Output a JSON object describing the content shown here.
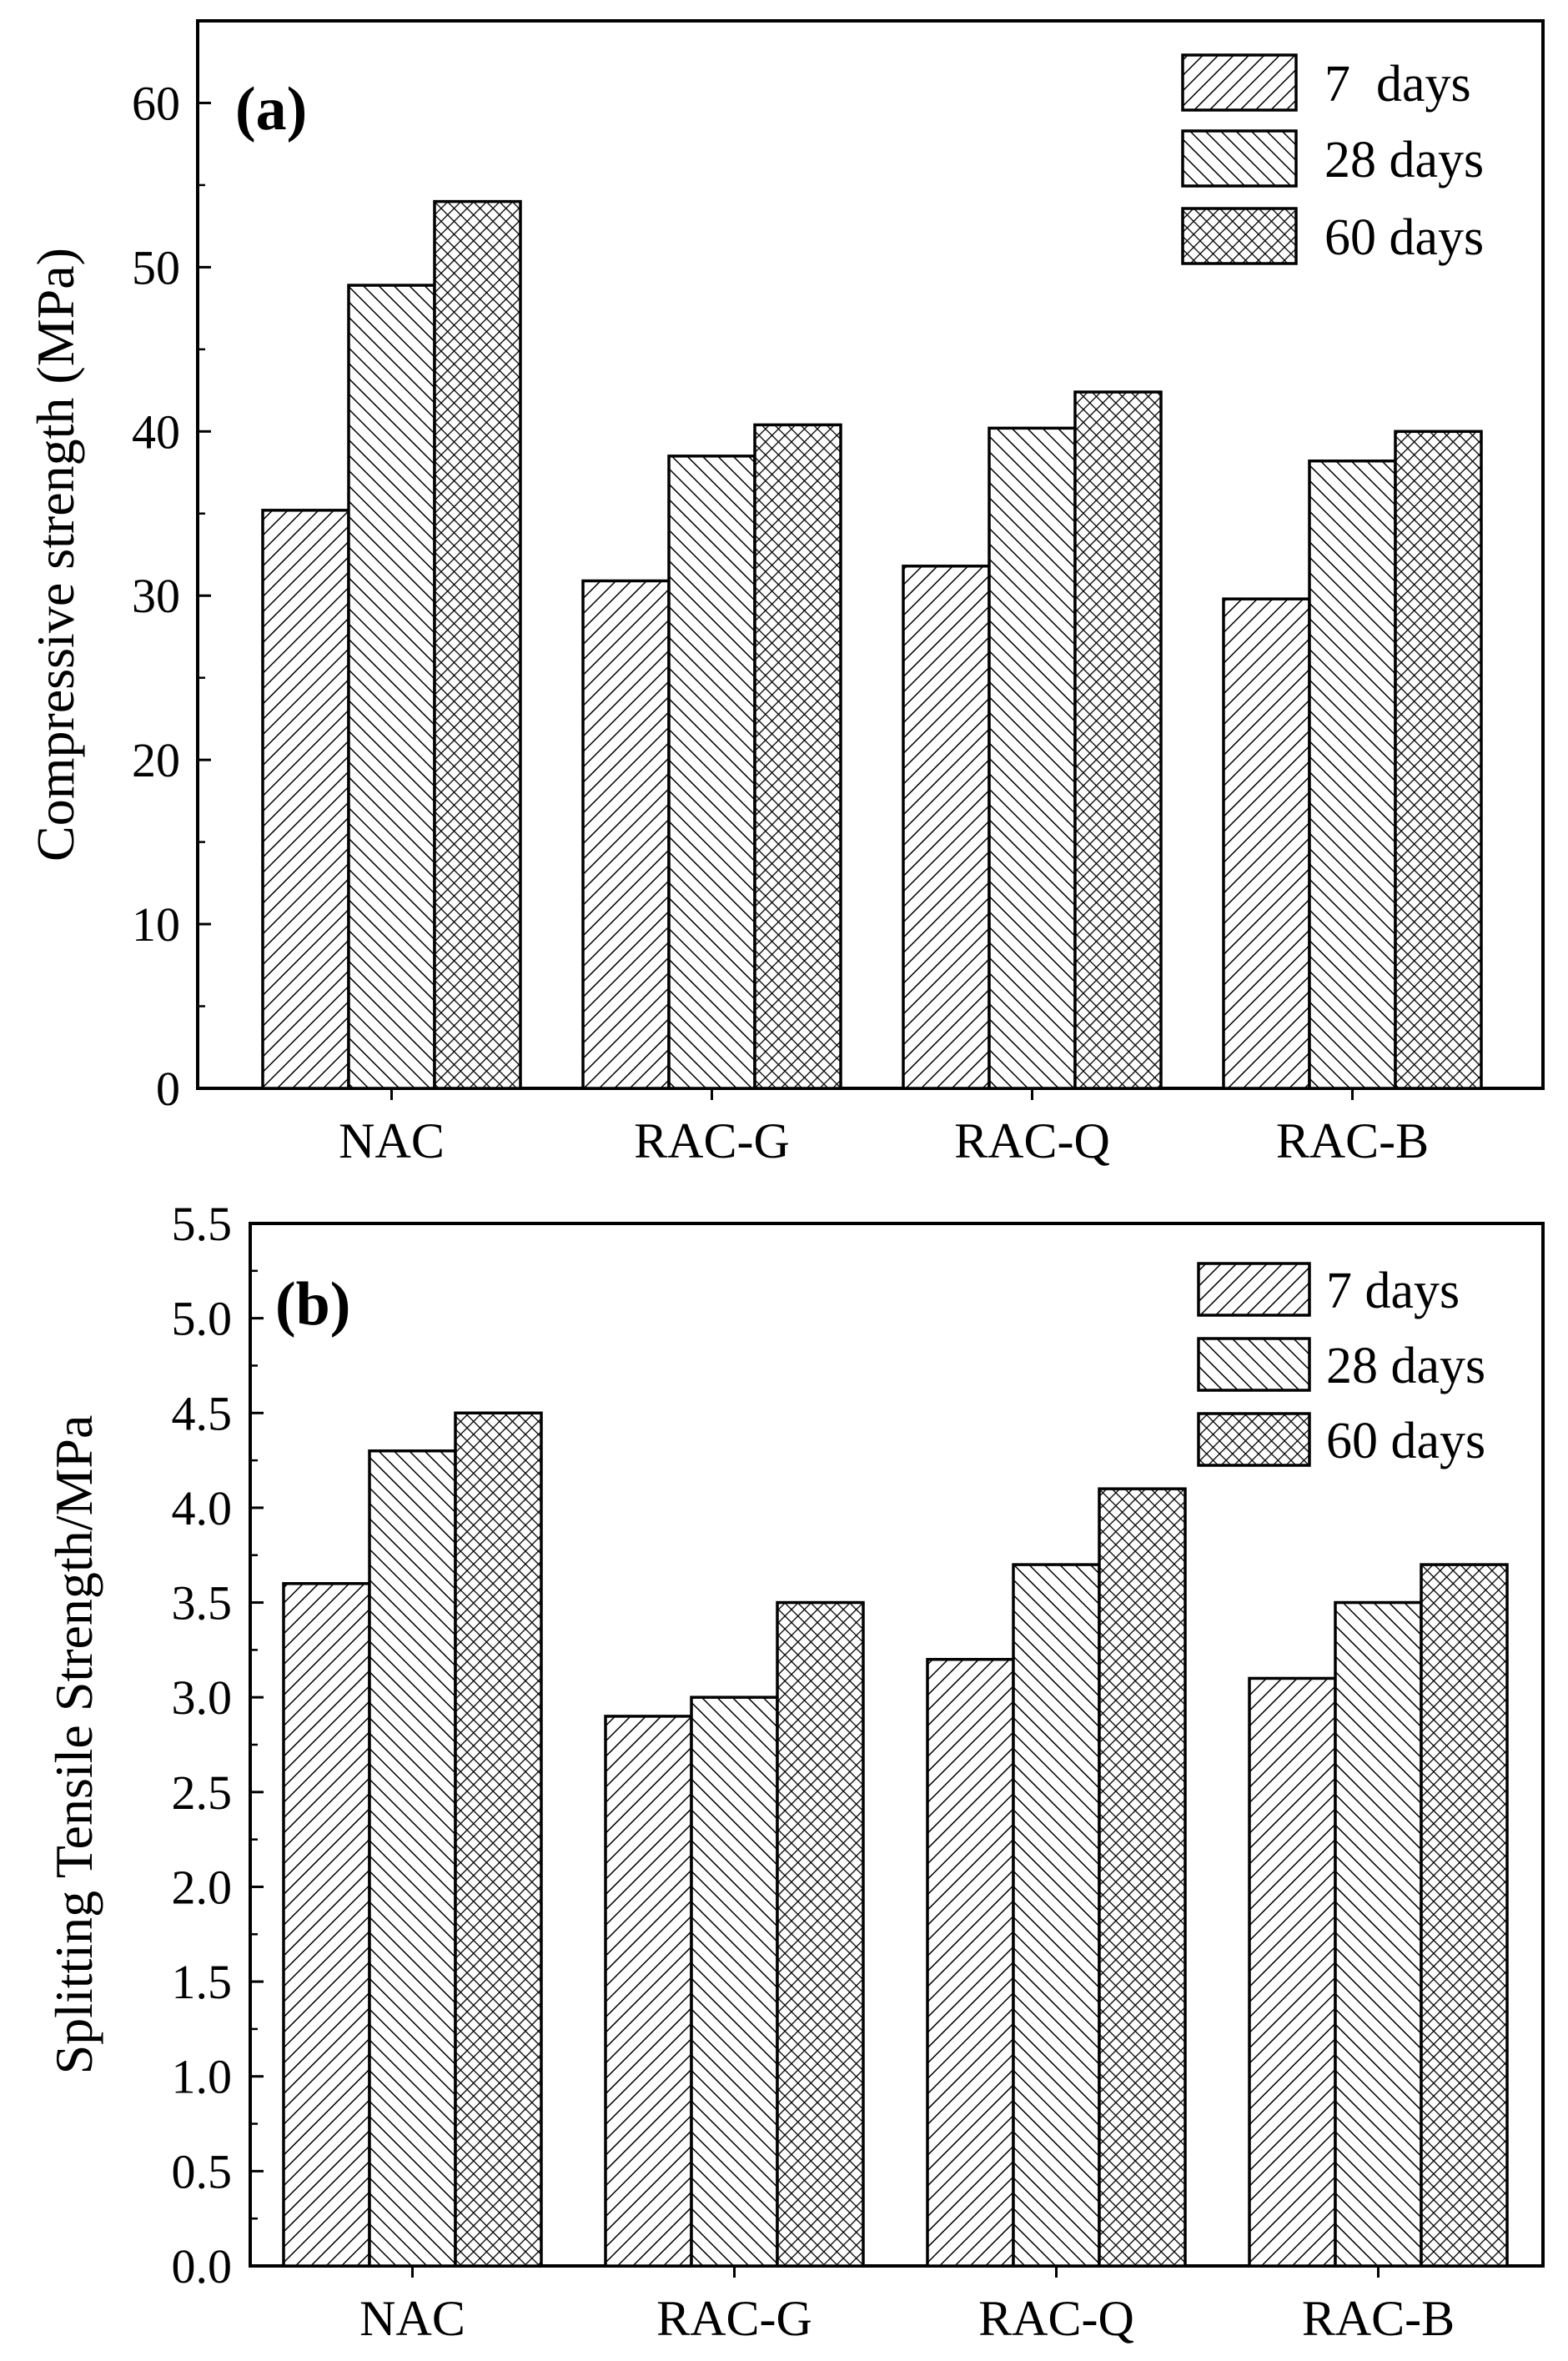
{
  "chart_data": [
    {
      "type": "bar",
      "panel_label": "(a)",
      "title": "",
      "xlabel": "",
      "ylabel": "Compressive strength (MPa)",
      "categories": [
        "NAC",
        "RAC-G",
        "RAC-Q",
        "RAC-B"
      ],
      "ylim": [
        0,
        65
      ],
      "yticks": [
        0,
        10,
        20,
        30,
        40,
        50,
        60
      ],
      "ytick_labels": [
        "0",
        "10",
        "20",
        "30",
        "40",
        "50",
        "60"
      ],
      "legend_position": "top-right",
      "series": [
        {
          "name": "7  days",
          "pattern": "diag-right",
          "values": [
            35.2,
            30.9,
            31.8,
            29.8
          ]
        },
        {
          "name": "28 days",
          "pattern": "diag-left",
          "values": [
            48.9,
            38.5,
            40.2,
            38.2
          ]
        },
        {
          "name": "60 days",
          "pattern": "crosshatch",
          "values": [
            54.0,
            40.4,
            42.4,
            40.0
          ]
        }
      ]
    },
    {
      "type": "bar",
      "panel_label": "(b)",
      "title": "",
      "xlabel": "",
      "ylabel": "Splitting Tensile Strength/MPa",
      "categories": [
        "NAC",
        "RAC-G",
        "RAC-Q",
        "RAC-B"
      ],
      "ylim": [
        0,
        5.5
      ],
      "yticks": [
        0,
        0.5,
        1,
        1.5,
        2,
        2.5,
        3,
        3.5,
        4,
        4.5,
        5,
        5.5
      ],
      "ytick_labels": [
        "0.0",
        "0.5",
        "1.0",
        "1.5",
        "2.0",
        "2.5",
        "3.0",
        "3.5",
        "4.0",
        "4.5",
        "5.0",
        "5.5"
      ],
      "legend_position": "top-right",
      "series": [
        {
          "name": "7 days",
          "pattern": "diag-right",
          "values": [
            3.6,
            2.9,
            3.2,
            3.1
          ]
        },
        {
          "name": "28 days",
          "pattern": "diag-left",
          "values": [
            4.3,
            3.0,
            3.7,
            3.5
          ]
        },
        {
          "name": "60 days",
          "pattern": "crosshatch",
          "values": [
            4.5,
            3.5,
            4.1,
            3.7
          ]
        }
      ]
    }
  ]
}
